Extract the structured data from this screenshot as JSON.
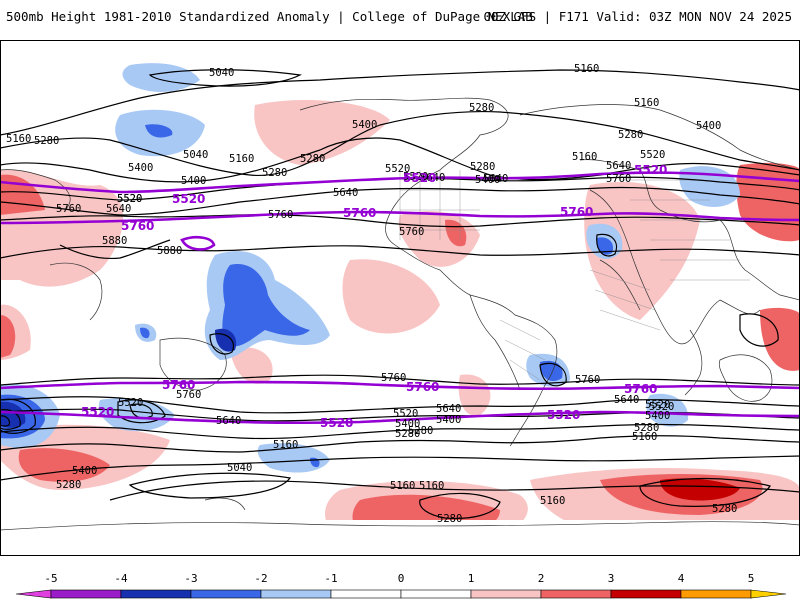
{
  "header": {
    "title_left": "500mb Height 1981-2010 Standardized Anomaly | College of DuPage NEXLAB",
    "title_right": "00Z GFS | F171 Valid: 03Z MON NOV 24 2025"
  },
  "map": {
    "contour_labels": [
      "5040",
      "5160",
      "5280",
      "5400",
      "5520",
      "5640",
      "5760",
      "5880"
    ],
    "highlight_labels": [
      "5520",
      "5760"
    ],
    "labels": {
      "l1": "5040",
      "l2": "5160",
      "l3": "5160",
      "l4": "5160",
      "l5": "5280",
      "l6": "5400",
      "l7": "5040",
      "l8": "5160",
      "l9": "5280",
      "l10": "5400",
      "l11": "5520",
      "l12": "5640",
      "l13": "5760",
      "l14": "5880",
      "l15": "5280",
      "l16": "5520",
      "l17": "5640",
      "l18": "5520",
      "l19": "5640",
      "l20": "5760",
      "l21": "5880",
      "l22": "5400",
      "l23": "5280",
      "l24": "5400",
      "l25": "5280",
      "l26": "5520",
      "l27": "5640",
      "l28": "5760",
      "l29": "5760",
      "l30": "5760",
      "l31": "5640",
      "l32": "5520",
      "l33": "5400",
      "l34": "5280",
      "l35": "5160",
      "l36": "5520",
      "l37": "5400",
      "l38": "5280",
      "l39": "5640",
      "l40": "5760",
      "l41": "5640",
      "l42": "5520",
      "l43": "5400",
      "l44": "5280",
      "l45": "5160",
      "l46": "5160",
      "l47": "5040",
      "l48": "5400",
      "l49": "5280",
      "l50": "5160",
      "l51": "5280",
      "l52": "5160",
      "l53": "5280",
      "l54": "5400",
      "l55": "5520",
      "l56": "5640",
      "l57": "5760",
      "l58": "5280",
      "l59": "5160",
      "l60": "5520",
      "l61": "5760",
      "l62": "5760",
      "l63": "5520",
      "l64": "5520",
      "l65": "5520",
      "l66": "5760",
      "l67": "5760",
      "l68": "5760",
      "l69": "5520",
      "l70": "5400",
      "l71": "5280",
      "l72": "5160"
    }
  },
  "colorbar": {
    "ticks": [
      "-5",
      "-4",
      "-3",
      "-2",
      "-1",
      "0",
      "1",
      "2",
      "3",
      "4",
      "5"
    ],
    "bins": [
      {
        "from": -5.5,
        "to": -5,
        "color": "#e040e0"
      },
      {
        "from": -5,
        "to": -4,
        "color": "#9a1dc9"
      },
      {
        "from": -4,
        "to": -3,
        "color": "#1630b0"
      },
      {
        "from": -3,
        "to": -2,
        "color": "#3a66e8"
      },
      {
        "from": -2,
        "to": -1,
        "color": "#a9c9f5"
      },
      {
        "from": -1,
        "to": 0,
        "color": "#ffffff"
      },
      {
        "from": 0,
        "to": 1,
        "color": "#ffffff"
      },
      {
        "from": 1,
        "to": 2,
        "color": "#f9c4c4"
      },
      {
        "from": 2,
        "to": 3,
        "color": "#ee6464"
      },
      {
        "from": 3,
        "to": 4,
        "color": "#c40000"
      },
      {
        "from": 4,
        "to": 5,
        "color": "#ff9a00"
      },
      {
        "from": 5,
        "to": 5.5,
        "color": "#ffd000"
      }
    ]
  }
}
